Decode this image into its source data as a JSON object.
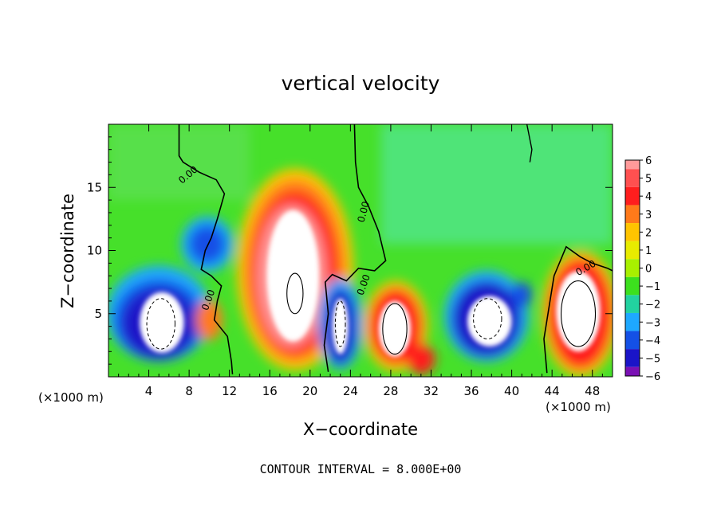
{
  "chart_data": {
    "type": "heatmap",
    "title": "vertical velocity",
    "xlabel": "X−coordinate",
    "ylabel": "Z−coordinate",
    "x_unit_left": "(×1000 m)",
    "x_unit_right": "(×1000 m)",
    "xlim": [
      0,
      50
    ],
    "ylim": [
      0,
      20
    ],
    "x_ticks": [
      4,
      8,
      12,
      16,
      20,
      24,
      28,
      32,
      36,
      40,
      44,
      48
    ],
    "y_ticks": [
      5,
      10,
      15
    ],
    "colorbar": {
      "range": [
        -6,
        6
      ],
      "labels": [
        "6",
        "5",
        "4",
        "3",
        "2",
        "1",
        "0",
        "−1",
        "−2",
        "−3",
        "−4",
        "−5",
        "−6"
      ],
      "colors": [
        "#ff9a9a",
        "#ff5050",
        "#ff1e1e",
        "#ff7a1a",
        "#ffc400",
        "#e8ec00",
        "#a8f000",
        "#3ce01e",
        "#22d2a0",
        "#1ea8ff",
        "#1450e6",
        "#1a14c8",
        "#7a10b4"
      ]
    },
    "contour_interval_text": "CONTOUR INTERVAL = 8.000E+00",
    "contour_labels": [
      "0.00",
      "0.00",
      "0.00",
      "0.00",
      "0.00",
      "0.00"
    ],
    "features": [
      {
        "kind": "updraft",
        "x": 18.5,
        "z": 8.5,
        "w": 9
      },
      {
        "kind": "updraft",
        "x": 28.5,
        "z": 4.0,
        "w": 6
      },
      {
        "kind": "updraft",
        "x": 46.5,
        "z": 5.0,
        "w": 6
      },
      {
        "kind": "updraft",
        "x": 31.0,
        "z": 1.5,
        "w": 3
      },
      {
        "kind": "downdraft",
        "x": 5.0,
        "z": 4.5,
        "w": -6
      },
      {
        "kind": "downdraft",
        "x": 9.5,
        "z": 10.5,
        "w": -2.5
      },
      {
        "kind": "downdraft",
        "x": 23.0,
        "z": 4.0,
        "w": -5
      },
      {
        "kind": "downdraft",
        "x": 38.0,
        "z": 4.5,
        "w": -5
      }
    ]
  }
}
